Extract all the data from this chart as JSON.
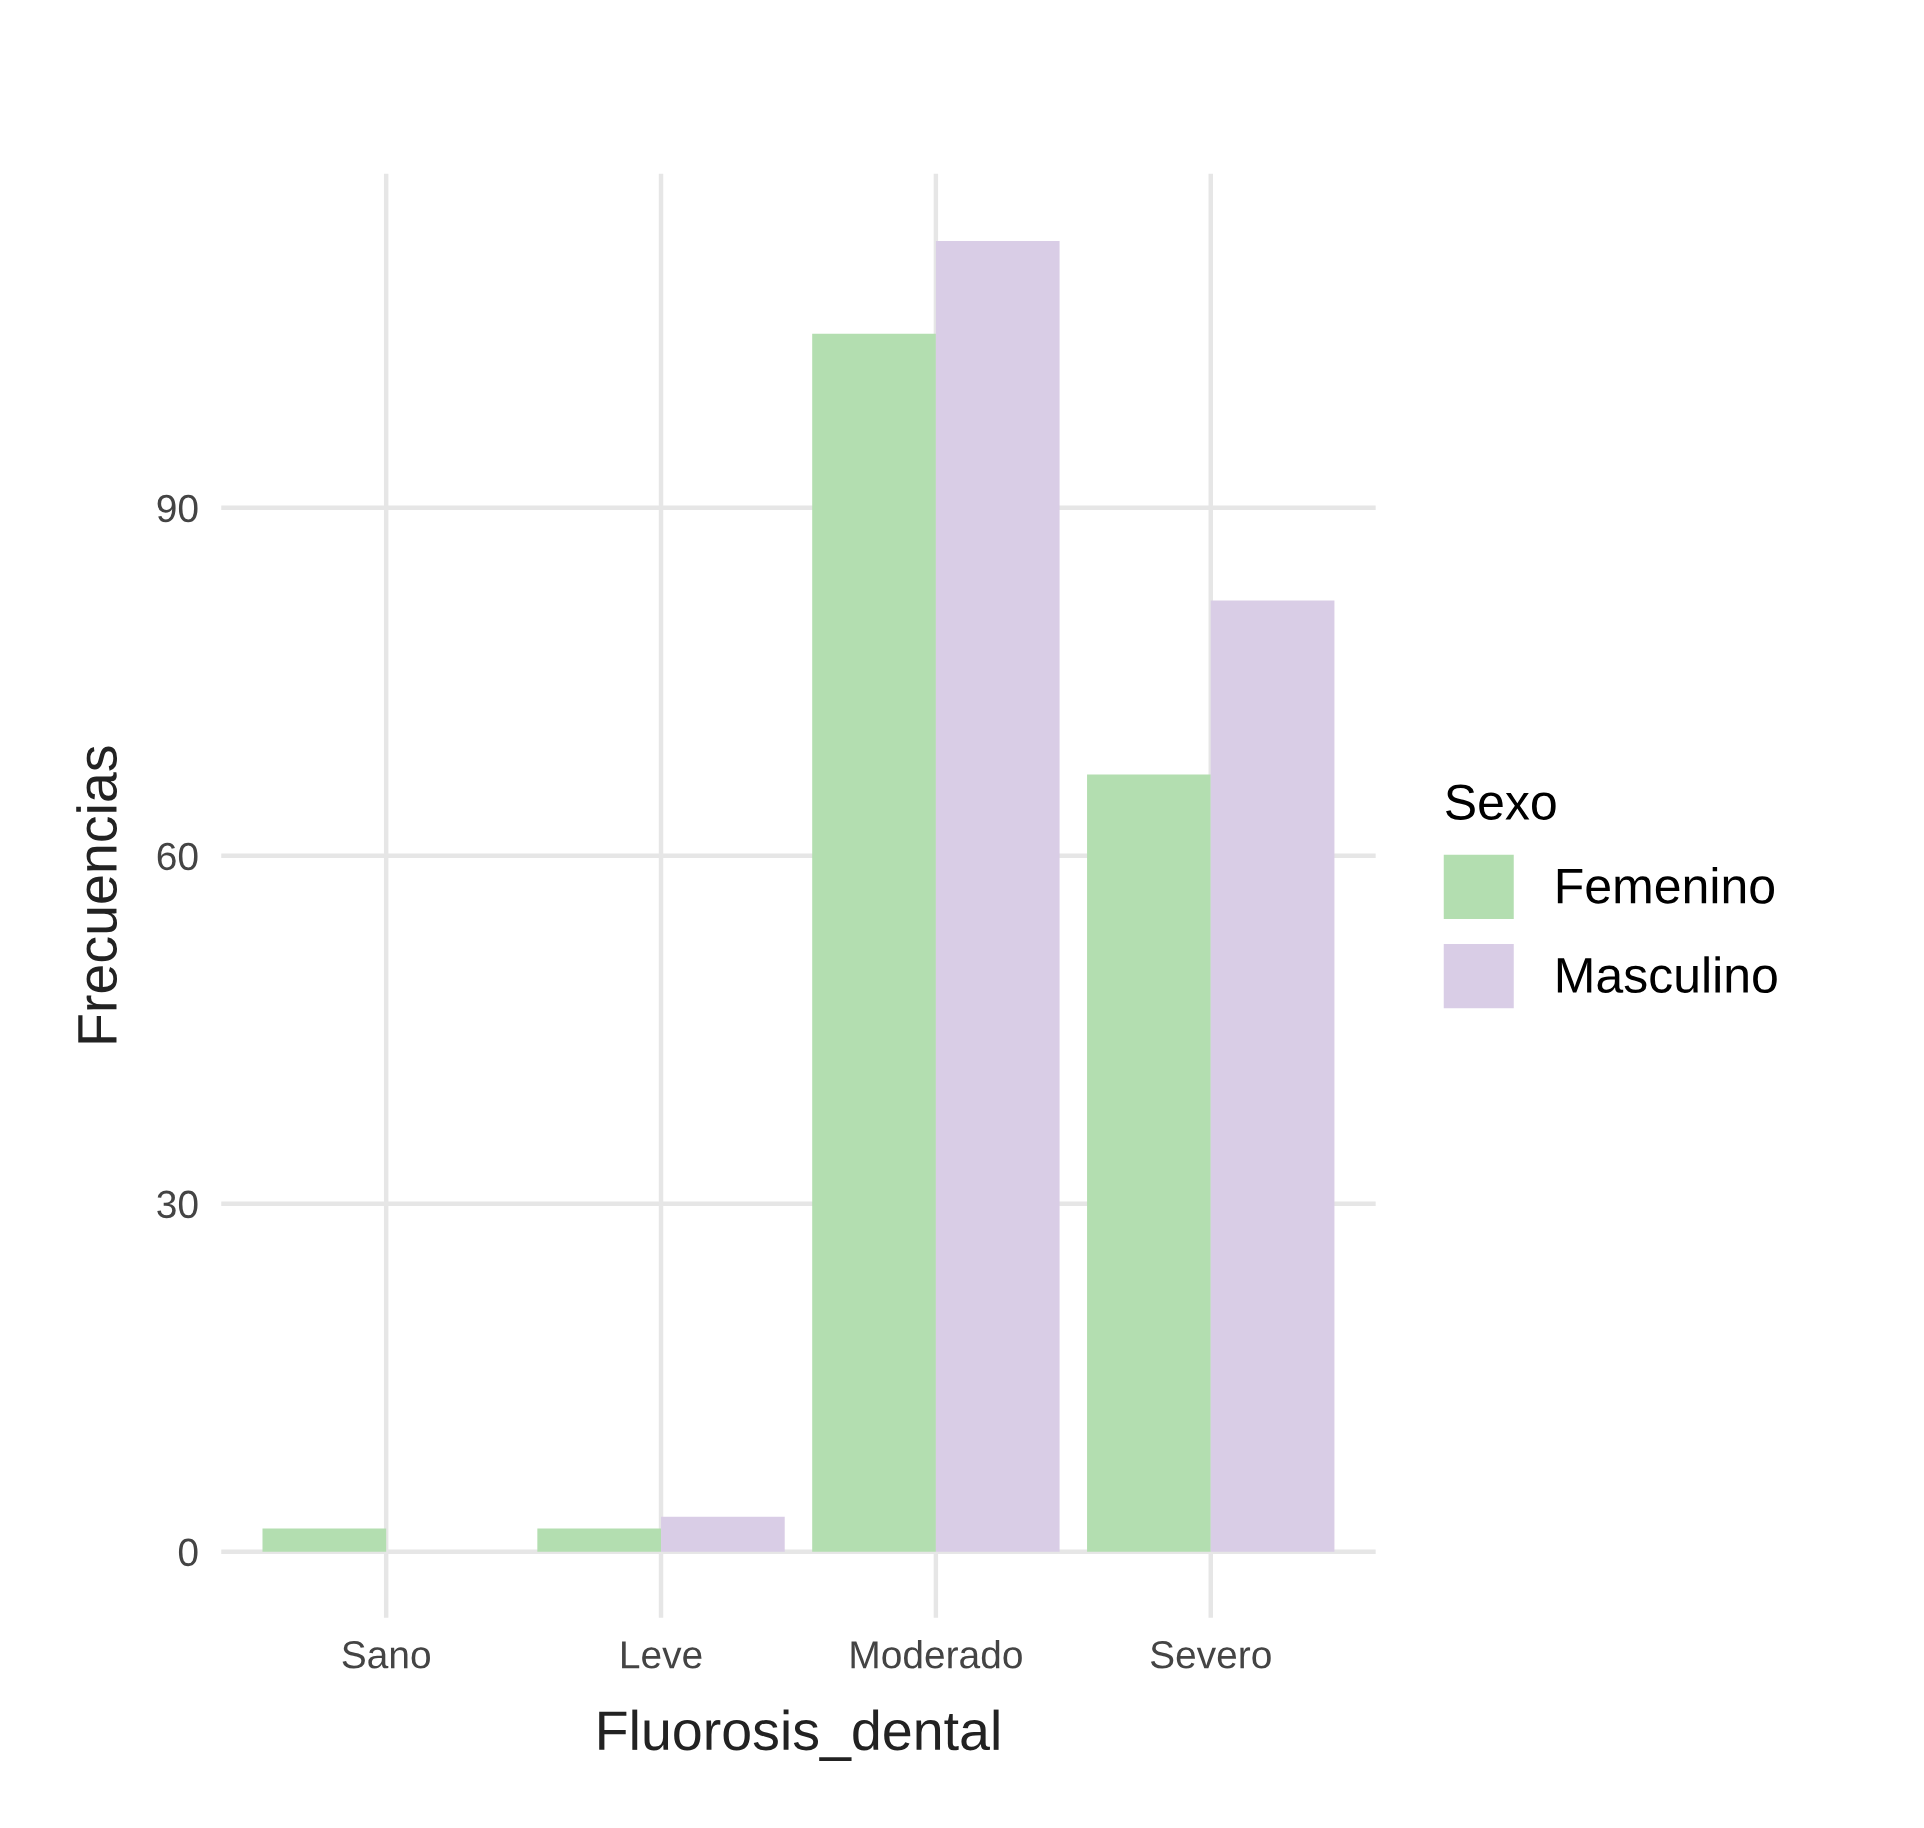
{
  "chart_data": {
    "type": "bar",
    "xlabel": "Fluorosis_dental",
    "ylabel": "Frecuencias",
    "legend_title": "Sexo",
    "categories": [
      "Sano",
      "Leve",
      "Moderado",
      "Severo"
    ],
    "series": [
      {
        "name": "Femenino",
        "color": "#b3deb0",
        "values": [
          2,
          2,
          105,
          67
        ]
      },
      {
        "name": "Masculino",
        "color": "#d9cde6",
        "values": [
          0,
          3,
          113,
          82
        ]
      }
    ],
    "ylim": [
      -5.7,
      118.8
    ],
    "yticks": [
      0,
      30,
      60,
      90
    ],
    "grid": true,
    "legend": "right"
  }
}
